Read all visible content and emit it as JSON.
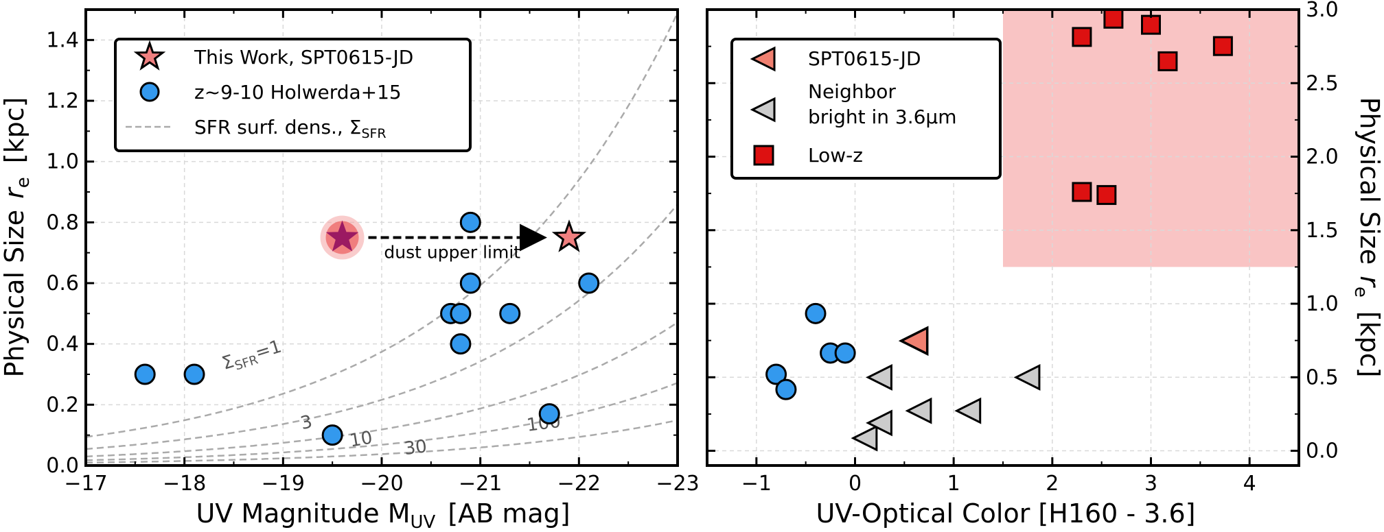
{
  "chart_data": [
    {
      "type": "scatter",
      "xlabel": "UV Magnitude M",
      "xlabel_sub": "UV",
      "xlabel_unit": "[AB mag]",
      "ylabel": "Physical Size",
      "ylabel_var": "r",
      "ylabel_sub": "e",
      "ylabel_unit": "[kpc]",
      "xlim": [
        -17,
        -23
      ],
      "ylim": [
        0.0,
        1.5
      ],
      "x_inverted": true,
      "grid": true,
      "xticks": [
        -17,
        -18,
        -19,
        -20,
        -21,
        -22,
        -23
      ],
      "xtick_labels": [
        "−17",
        "−18",
        "−19",
        "−20",
        "−21",
        "−22",
        "−23"
      ],
      "yticks": [
        0.0,
        0.2,
        0.4,
        0.6,
        0.8,
        1.0,
        1.2,
        1.4
      ],
      "ytick_labels": [
        "0.0",
        "0.2",
        "0.4",
        "0.6",
        "0.8",
        "1.0",
        "1.2",
        "1.4"
      ],
      "legend_position": "top-left",
      "series": [
        {
          "name": "This Work, SPT0615-JD",
          "marker": "star",
          "color": "#f08080",
          "points": [
            {
              "x": -19.6,
              "y": 0.75
            },
            {
              "x": -21.9,
              "y": 0.75
            }
          ]
        },
        {
          "name": "z~9-10 Holwerda+15",
          "marker": "circle",
          "color": "#3399ee",
          "points": [
            {
              "x": -17.6,
              "y": 0.3
            },
            {
              "x": -18.1,
              "y": 0.3
            },
            {
              "x": -19.5,
              "y": 0.1
            },
            {
              "x": -20.7,
              "y": 0.5
            },
            {
              "x": -20.8,
              "y": 0.5
            },
            {
              "x": -20.8,
              "y": 0.4
            },
            {
              "x": -20.9,
              "y": 0.6
            },
            {
              "x": -20.9,
              "y": 0.8
            },
            {
              "x": -21.3,
              "y": 0.5
            },
            {
              "x": -21.7,
              "y": 0.17
            },
            {
              "x": -22.1,
              "y": 0.6
            }
          ]
        },
        {
          "name": "SFR surf. dens., Σ",
          "name_sub": "SFR",
          "marker": "dashed-line",
          "color": "#aaaaaa",
          "sigma_levels": [
            1,
            3,
            10,
            30,
            100
          ],
          "level_labels": [
            "1",
            "3",
            "10",
            "30",
            "100"
          ]
        }
      ],
      "annotations": {
        "arrow_text": "dust upper limit",
        "sigma_label_prefix": "Σ",
        "sigma_label_sub": "SFR",
        "sigma_label_suffix": "=1"
      }
    },
    {
      "type": "scatter",
      "xlabel": "UV-Optical Color  [H160 - 3.6]",
      "ylabel": "Physical Size",
      "ylabel_var": "r",
      "ylabel_sub": "e",
      "ylabel_unit": "[kpc]",
      "ylabel_position": "right",
      "xlim": [
        -1.5,
        4.5
      ],
      "ylim": [
        0.0,
        1.5
      ],
      "right_ylim": [
        -0.1,
        3.0
      ],
      "grid": true,
      "xticks": [
        -1,
        0,
        1,
        2,
        3,
        4
      ],
      "xtick_labels": [
        "−1",
        "0",
        "1",
        "2",
        "3",
        "4"
      ],
      "right_yticks": [
        0.0,
        0.5,
        1.0,
        1.5,
        2.0,
        2.5,
        3.0
      ],
      "right_ytick_labels": [
        "0.0",
        "0.5",
        "1.0",
        "1.5",
        "2.0",
        "2.5",
        "3.0"
      ],
      "legend_position": "top-left",
      "shaded_region": {
        "x": [
          1.5,
          4.5
        ],
        "y_right": [
          1.25,
          3.0
        ],
        "color": "#f9c4c4"
      },
      "series": [
        {
          "name": "SPT0615-JD",
          "marker": "triangle-left",
          "color": "#f08070",
          "points": [
            {
              "x": 0.6,
              "y": 0.41
            }
          ]
        },
        {
          "name": "Neighbor",
          "name_line2": "bright in 3.6μm",
          "marker": "triangle-left",
          "color": "#cccccc",
          "points": [
            {
              "x": 0.1,
              "y": 0.09
            },
            {
              "x": 0.25,
              "y": 0.14
            },
            {
              "x": 0.25,
              "y": 0.29
            },
            {
              "x": 0.65,
              "y": 0.18
            },
            {
              "x": 1.15,
              "y": 0.18
            },
            {
              "x": 1.75,
              "y": 0.29
            }
          ]
        },
        {
          "name": "Low-z",
          "marker": "square",
          "color": "#dd1111",
          "points": [
            {
              "x": 2.3,
              "y": 1.41
            },
            {
              "x": 2.62,
              "y": 1.47
            },
            {
              "x": 3.0,
              "y": 1.45
            },
            {
              "x": 3.17,
              "y": 1.33
            },
            {
              "x": 3.73,
              "y": 1.38
            },
            {
              "x": 2.3,
              "y": 0.9
            },
            {
              "x": 2.55,
              "y": 0.89
            }
          ]
        },
        {
          "name": "",
          "marker": "circle",
          "color": "#3399ee",
          "points": [
            {
              "x": -0.8,
              "y": 0.3
            },
            {
              "x": -0.7,
              "y": 0.25
            },
            {
              "x": -0.4,
              "y": 0.5
            },
            {
              "x": -0.25,
              "y": 0.37
            },
            {
              "x": -0.1,
              "y": 0.37
            }
          ]
        }
      ]
    }
  ]
}
